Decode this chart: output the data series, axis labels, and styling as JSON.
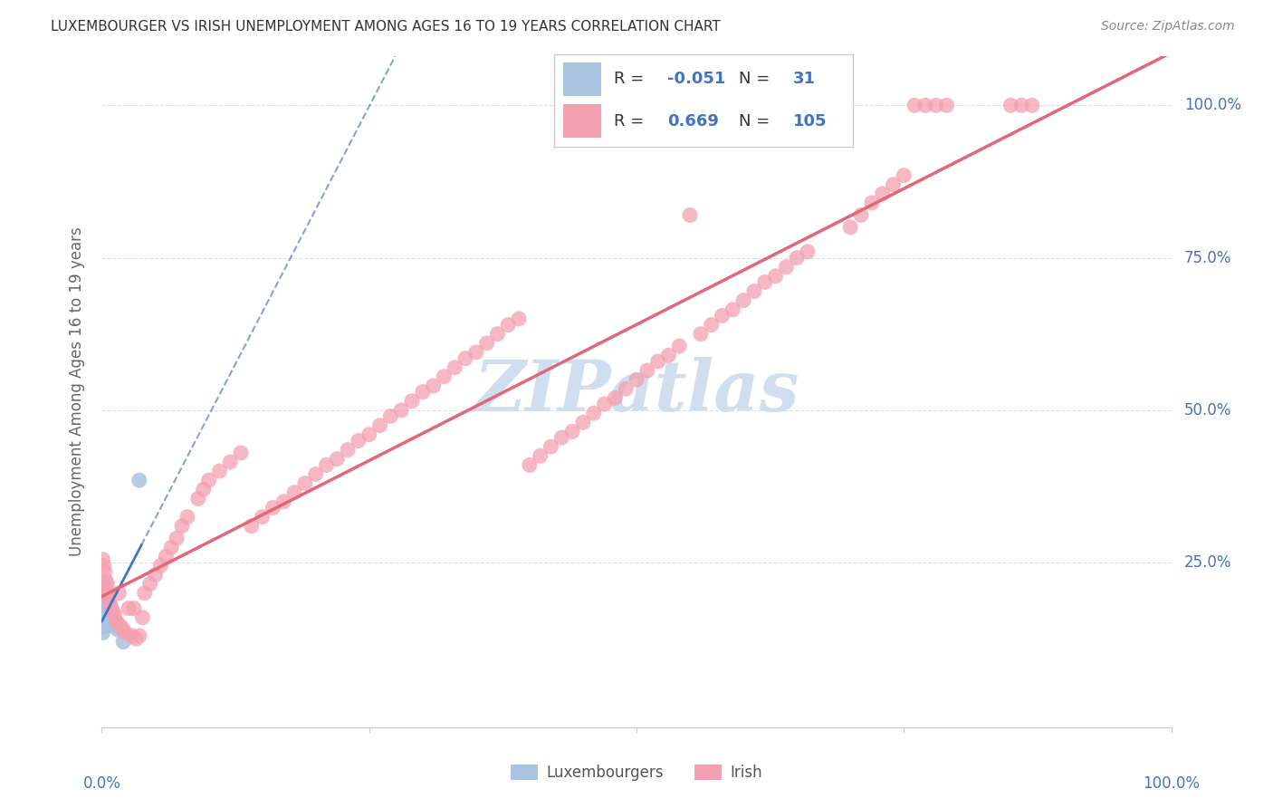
{
  "title": "LUXEMBOURGER VS IRISH UNEMPLOYMENT AMONG AGES 16 TO 19 YEARS CORRELATION CHART",
  "source": "Source: ZipAtlas.com",
  "ylabel": "Unemployment Among Ages 16 to 19 years",
  "legend_blue_R": "-0.051",
  "legend_blue_N": "31",
  "legend_pink_R": "0.669",
  "legend_pink_N": "105",
  "legend_label_blue": "Luxembourgers",
  "legend_label_pink": "Irish",
  "blue_color": "#a8c4e0",
  "pink_color": "#f4a0b0",
  "blue_line_color": "#4472c4",
  "pink_line_color": "#e06878",
  "bg_color": "#ffffff",
  "grid_color": "#dddddd",
  "watermark_color": "#d0dff0",
  "title_color": "#333333",
  "source_color": "#888888",
  "axis_label_color": "#4472c4",
  "ylabel_color": "#666666",
  "blue_x": [
    0.001,
    0.001,
    0.001,
    0.001,
    0.002,
    0.002,
    0.002,
    0.002,
    0.002,
    0.002,
    0.003,
    0.003,
    0.003,
    0.003,
    0.003,
    0.004,
    0.004,
    0.004,
    0.005,
    0.005,
    0.006,
    0.006,
    0.007,
    0.008,
    0.009,
    0.01,
    0.011,
    0.012,
    0.015,
    0.02,
    0.035
  ],
  "blue_y": [
    0.175,
    0.155,
    0.145,
    0.135,
    0.2,
    0.19,
    0.18,
    0.165,
    0.155,
    0.145,
    0.21,
    0.195,
    0.18,
    0.165,
    0.15,
    0.2,
    0.185,
    0.17,
    0.19,
    0.175,
    0.18,
    0.165,
    0.175,
    0.17,
    0.165,
    0.155,
    0.15,
    0.145,
    0.14,
    0.12,
    0.385
  ],
  "pink_x": [
    0.001,
    0.002,
    0.003,
    0.003,
    0.004,
    0.005,
    0.005,
    0.006,
    0.007,
    0.008,
    0.009,
    0.01,
    0.012,
    0.013,
    0.015,
    0.016,
    0.018,
    0.02,
    0.022,
    0.025,
    0.028,
    0.03,
    0.032,
    0.035,
    0.038,
    0.04,
    0.045,
    0.05,
    0.055,
    0.06,
    0.065,
    0.07,
    0.075,
    0.08,
    0.09,
    0.095,
    0.1,
    0.11,
    0.12,
    0.13,
    0.14,
    0.15,
    0.16,
    0.17,
    0.18,
    0.19,
    0.2,
    0.21,
    0.22,
    0.23,
    0.24,
    0.25,
    0.26,
    0.27,
    0.28,
    0.29,
    0.3,
    0.31,
    0.32,
    0.33,
    0.34,
    0.35,
    0.36,
    0.37,
    0.38,
    0.39,
    0.4,
    0.41,
    0.42,
    0.43,
    0.44,
    0.45,
    0.46,
    0.47,
    0.48,
    0.49,
    0.5,
    0.51,
    0.52,
    0.53,
    0.54,
    0.55,
    0.56,
    0.57,
    0.58,
    0.59,
    0.6,
    0.61,
    0.62,
    0.63,
    0.64,
    0.65,
    0.66,
    0.7,
    0.71,
    0.72,
    0.73,
    0.74,
    0.75,
    0.76,
    0.77,
    0.78,
    0.79,
    0.85,
    0.86,
    0.87
  ],
  "pink_y": [
    0.255,
    0.245,
    0.235,
    0.21,
    0.22,
    0.215,
    0.2,
    0.195,
    0.185,
    0.18,
    0.175,
    0.17,
    0.165,
    0.155,
    0.15,
    0.2,
    0.145,
    0.14,
    0.135,
    0.175,
    0.13,
    0.175,
    0.125,
    0.13,
    0.16,
    0.2,
    0.215,
    0.23,
    0.245,
    0.26,
    0.275,
    0.29,
    0.31,
    0.325,
    0.355,
    0.37,
    0.385,
    0.4,
    0.415,
    0.43,
    0.31,
    0.325,
    0.34,
    0.35,
    0.365,
    0.38,
    0.395,
    0.41,
    0.42,
    0.435,
    0.45,
    0.46,
    0.475,
    0.49,
    0.5,
    0.515,
    0.53,
    0.54,
    0.555,
    0.57,
    0.585,
    0.595,
    0.61,
    0.625,
    0.64,
    0.65,
    0.41,
    0.425,
    0.44,
    0.455,
    0.465,
    0.48,
    0.495,
    0.51,
    0.52,
    0.535,
    0.55,
    0.565,
    0.58,
    0.59,
    0.605,
    0.82,
    0.625,
    0.64,
    0.655,
    0.665,
    0.68,
    0.695,
    0.71,
    0.72,
    0.735,
    0.75,
    0.76,
    0.8,
    0.82,
    0.84,
    0.855,
    0.87,
    0.885,
    1.005,
    1.005,
    1.005,
    1.005,
    1.005,
    1.005,
    1.005
  ]
}
